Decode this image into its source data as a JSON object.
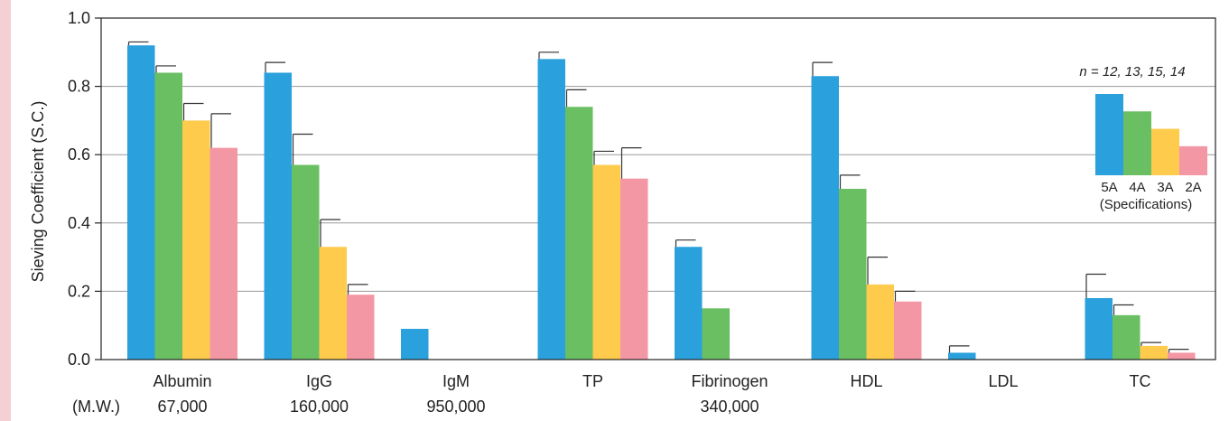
{
  "colors": {
    "background_strip": "#f4cfd3",
    "grid": "#9a9a9a",
    "axis": "#222222"
  },
  "chart_data": {
    "type": "bar",
    "ylabel": "Sieving Coefficient (S.C.)",
    "ylim": [
      0,
      1.0
    ],
    "yticks": [
      "0.0",
      "0.2",
      "0.4",
      "0.6",
      "0.8",
      "1.0"
    ],
    "grid": true,
    "categories": [
      "Albumin",
      "IgG",
      "IgM",
      "TP",
      "Fibrinogen",
      "HDL",
      "LDL",
      "TC"
    ],
    "mw_label": "(M.W.)",
    "molecular_weights": [
      "67,000",
      "160,000",
      "950,000",
      "",
      "340,000",
      "",
      "",
      ""
    ],
    "series": [
      {
        "name": "5A",
        "color": "#2aa0dc",
        "values": [
          0.92,
          0.84,
          0.09,
          0.88,
          0.33,
          0.83,
          0.02,
          0.18
        ],
        "errors": [
          0.01,
          0.03,
          null,
          0.02,
          0.02,
          0.04,
          0.02,
          0.07
        ]
      },
      {
        "name": "4A",
        "color": "#6abf63",
        "values": [
          0.84,
          0.57,
          null,
          0.74,
          0.15,
          0.5,
          null,
          0.13
        ],
        "errors": [
          0.02,
          0.09,
          null,
          0.05,
          null,
          0.04,
          null,
          0.03
        ]
      },
      {
        "name": "3A",
        "color": "#fecb4d",
        "values": [
          0.7,
          0.33,
          null,
          0.57,
          null,
          0.22,
          null,
          0.04
        ],
        "errors": [
          0.05,
          0.08,
          null,
          0.04,
          null,
          0.08,
          null,
          0.01
        ]
      },
      {
        "name": "2A",
        "color": "#f497a4",
        "values": [
          0.62,
          0.19,
          null,
          0.53,
          null,
          0.17,
          null,
          0.02
        ],
        "errors": [
          0.1,
          0.03,
          null,
          0.09,
          null,
          0.03,
          null,
          0.01
        ]
      }
    ],
    "legend": {
      "note": "n = 12, 13, 15, 14",
      "caption": "(Specifications)",
      "placement": "top-right"
    }
  }
}
